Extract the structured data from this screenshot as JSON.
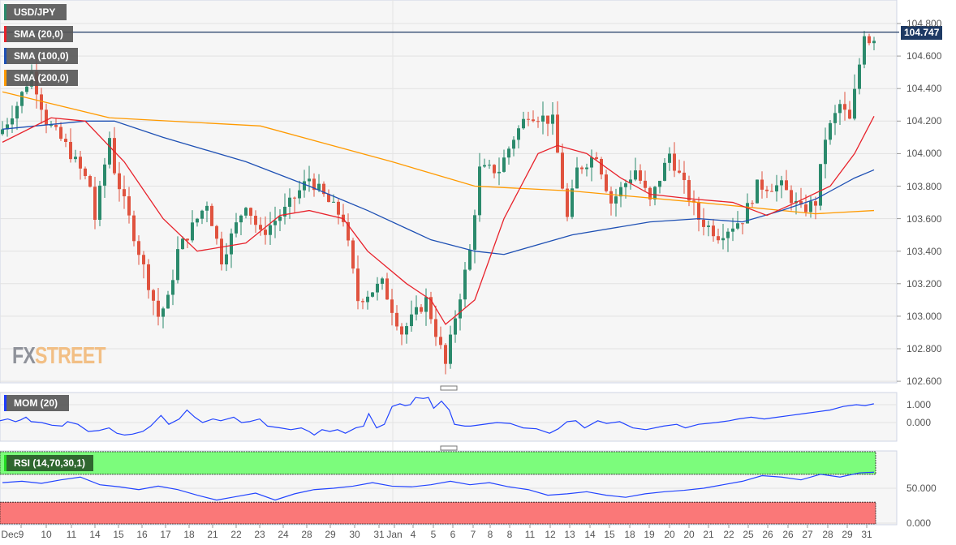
{
  "chart_data": [
    {
      "type": "candlestick",
      "title": "USD/JPY",
      "legend": [
        "USD/JPY",
        "SMA (20,0)",
        "SMA (100,0)",
        "SMA (200,0)"
      ],
      "last_price": "104.747",
      "ylim": [
        102.58,
        104.95
      ],
      "y_ticks": [
        "104.800",
        "104.600",
        "104.400",
        "104.200",
        "104.000",
        "103.800",
        "103.600",
        "103.400",
        "103.200",
        "103.000",
        "102.800",
        "102.600"
      ],
      "close_anchors": [
        [
          0,
          104.15
        ],
        [
          3,
          104.3
        ],
        [
          6,
          104.5
        ],
        [
          9,
          104.2
        ],
        [
          13,
          104.05
        ],
        [
          18,
          103.8
        ],
        [
          19,
          103.6
        ],
        [
          22,
          104.1
        ],
        [
          23,
          103.9
        ],
        [
          27,
          103.5
        ],
        [
          29,
          103.3
        ],
        [
          32,
          103.0
        ],
        [
          34,
          103.1
        ],
        [
          36,
          103.4
        ],
        [
          38,
          103.5
        ],
        [
          42,
          103.7
        ],
        [
          45,
          103.35
        ],
        [
          50,
          103.7
        ],
        [
          53,
          103.5
        ],
        [
          58,
          103.65
        ],
        [
          63,
          103.85
        ],
        [
          67,
          103.7
        ],
        [
          70,
          103.6
        ],
        [
          73,
          103.1
        ],
        [
          78,
          103.2
        ],
        [
          82,
          102.9
        ],
        [
          87,
          103.1
        ],
        [
          91,
          102.7
        ],
        [
          93,
          103.0
        ],
        [
          96,
          103.4
        ],
        [
          98,
          103.9
        ],
        [
          102,
          103.9
        ],
        [
          105,
          104.1
        ],
        [
          108,
          104.25
        ],
        [
          113,
          104.2
        ],
        [
          116,
          103.6
        ],
        [
          118,
          103.9
        ],
        [
          122,
          104.0
        ],
        [
          125,
          103.7
        ],
        [
          130,
          103.9
        ],
        [
          133,
          103.7
        ],
        [
          137,
          104.0
        ],
        [
          140,
          103.8
        ],
        [
          143,
          103.6
        ],
        [
          147,
          103.5
        ],
        [
          152,
          103.6
        ],
        [
          155,
          103.8
        ],
        [
          160,
          103.8
        ],
        [
          164,
          103.65
        ],
        [
          167,
          103.7
        ],
        [
          169,
          104.1
        ],
        [
          172,
          104.3
        ],
        [
          174,
          104.2
        ],
        [
          176,
          104.55
        ],
        [
          177,
          104.75
        ],
        [
          178,
          104.7
        ],
        [
          179,
          104.72
        ]
      ],
      "sma20": [
        [
          0,
          104.07
        ],
        [
          10,
          104.22
        ],
        [
          17,
          104.2
        ],
        [
          25,
          103.95
        ],
        [
          33,
          103.6
        ],
        [
          40,
          103.4
        ],
        [
          50,
          103.45
        ],
        [
          57,
          103.62
        ],
        [
          63,
          103.65
        ],
        [
          70,
          103.6
        ],
        [
          75,
          103.4
        ],
        [
          83,
          103.2
        ],
        [
          88,
          103.1
        ],
        [
          91,
          102.95
        ],
        [
          97,
          103.1
        ],
        [
          103,
          103.6
        ],
        [
          110,
          104.0
        ],
        [
          114,
          104.05
        ],
        [
          120,
          104.0
        ],
        [
          127,
          103.85
        ],
        [
          133,
          103.75
        ],
        [
          142,
          103.72
        ],
        [
          150,
          103.7
        ],
        [
          157,
          103.62
        ],
        [
          163,
          103.7
        ],
        [
          170,
          103.8
        ],
        [
          175,
          104.0
        ],
        [
          179,
          104.23
        ]
      ],
      "sma100": [
        [
          0,
          104.15
        ],
        [
          17,
          104.2
        ],
        [
          23,
          104.2
        ],
        [
          33,
          104.1
        ],
        [
          50,
          103.95
        ],
        [
          63,
          103.8
        ],
        [
          75,
          103.65
        ],
        [
          88,
          103.47
        ],
        [
          97,
          103.4
        ],
        [
          103,
          103.38
        ],
        [
          117,
          103.5
        ],
        [
          133,
          103.58
        ],
        [
          143,
          103.6
        ],
        [
          152,
          103.58
        ],
        [
          160,
          103.65
        ],
        [
          167,
          103.72
        ],
        [
          175,
          103.85
        ],
        [
          179,
          103.9
        ]
      ],
      "sma200": [
        [
          0,
          104.38
        ],
        [
          22,
          104.22
        ],
        [
          53,
          104.17
        ],
        [
          80,
          103.95
        ],
        [
          97,
          103.8
        ],
        [
          117,
          103.77
        ],
        [
          143,
          103.7
        ],
        [
          167,
          103.63
        ],
        [
          179,
          103.65
        ]
      ],
      "colors": {
        "up": "#2b8a6c",
        "down": "#e0533f",
        "sma20": "#e8222b",
        "sma100": "#1e50b4",
        "sma200": "#ff9a00",
        "price_line": "#1e3a64"
      }
    },
    {
      "type": "line",
      "title": "MOM (20)",
      "y_ticks": [
        "1.000",
        "0.000"
      ],
      "ylim": [
        -0.9,
        1.45
      ],
      "points": [
        [
          0,
          0.1
        ],
        [
          3,
          0.2
        ],
        [
          6,
          0.05
        ],
        [
          8,
          0.15
        ],
        [
          10,
          0.3
        ],
        [
          12,
          0.05
        ],
        [
          16,
          0.0
        ],
        [
          20,
          -0.15
        ],
        [
          24,
          -0.2
        ],
        [
          26,
          0.05
        ],
        [
          30,
          -0.1
        ],
        [
          34,
          -0.5
        ],
        [
          38,
          -0.45
        ],
        [
          42,
          -0.3
        ],
        [
          45,
          -0.6
        ],
        [
          48,
          -0.7
        ],
        [
          51,
          -0.65
        ],
        [
          55,
          -0.5
        ],
        [
          58,
          -0.2
        ],
        [
          62,
          0.4
        ],
        [
          65,
          -0.1
        ],
        [
          69,
          0.2
        ],
        [
          72,
          0.7
        ],
        [
          75,
          0.3
        ],
        [
          78,
          0.0
        ],
        [
          82,
          0.2
        ],
        [
          85,
          0.1
        ],
        [
          90,
          0.3
        ],
        [
          93,
          0.0
        ],
        [
          96,
          0.05
        ],
        [
          100,
          0.2
        ],
        [
          103,
          -0.2
        ],
        [
          108,
          -0.3
        ],
        [
          112,
          -0.4
        ],
        [
          116,
          -0.3
        ],
        [
          119,
          -0.5
        ],
        [
          121,
          -0.7
        ],
        [
          124,
          -0.4
        ],
        [
          127,
          -0.5
        ],
        [
          130,
          -0.4
        ],
        [
          133,
          -0.6
        ],
        [
          137,
          -0.3
        ],
        [
          140,
          -0.2
        ],
        [
          142,
          0.5
        ],
        [
          145,
          -0.3
        ],
        [
          148,
          -0.1
        ],
        [
          151,
          0.9
        ],
        [
          154,
          1.05
        ],
        [
          156,
          0.95
        ],
        [
          158,
          1.0
        ],
        [
          160,
          1.4
        ],
        [
          163,
          1.35
        ],
        [
          165,
          1.4
        ],
        [
          167,
          0.8
        ],
        [
          170,
          1.2
        ],
        [
          173,
          0.7
        ],
        [
          175,
          -0.1
        ],
        [
          179,
          -0.2
        ]
      ],
      "points_right": [
        [
          0,
          -0.2
        ],
        [
          6,
          0.0
        ],
        [
          9,
          -0.05
        ],
        [
          12,
          -0.3
        ],
        [
          15,
          -0.35
        ],
        [
          18,
          -0.6
        ],
        [
          20,
          -0.35
        ],
        [
          22,
          0.05
        ],
        [
          24,
          0.1
        ],
        [
          26,
          -0.3
        ],
        [
          29,
          0.1
        ],
        [
          31,
          -0.05
        ],
        [
          34,
          0.05
        ],
        [
          37,
          -0.3
        ],
        [
          40,
          -0.4
        ],
        [
          44,
          -0.2
        ],
        [
          47,
          -0.1
        ],
        [
          49,
          -0.3
        ],
        [
          52,
          -0.1
        ],
        [
          56,
          0.0
        ],
        [
          59,
          0.1
        ],
        [
          61,
          0.2
        ],
        [
          64,
          0.3
        ],
        [
          67,
          0.2
        ],
        [
          70,
          0.3
        ],
        [
          73,
          0.4
        ],
        [
          76,
          0.5
        ],
        [
          79,
          0.6
        ],
        [
          82,
          0.7
        ],
        [
          85,
          0.9
        ],
        [
          88,
          1.0
        ],
        [
          90,
          0.95
        ],
        [
          92,
          1.05
        ]
      ]
    },
    {
      "type": "line",
      "title": "RSI (14,70,30,1)",
      "y_ticks": [
        "50.000",
        "0.000"
      ],
      "ylim": [
        0,
        100
      ],
      "overbought": 70,
      "oversold": 30,
      "points": [
        [
          0,
          58
        ],
        [
          4,
          60
        ],
        [
          8,
          57
        ],
        [
          12,
          62
        ],
        [
          16,
          66
        ],
        [
          20,
          55
        ],
        [
          24,
          52
        ],
        [
          28,
          48
        ],
        [
          32,
          53
        ],
        [
          36,
          48
        ],
        [
          40,
          40
        ],
        [
          44,
          33
        ],
        [
          48,
          38
        ],
        [
          52,
          43
        ],
        [
          56,
          33
        ],
        [
          60,
          42
        ],
        [
          64,
          48
        ],
        [
          68,
          50
        ],
        [
          72,
          53
        ],
        [
          76,
          58
        ],
        [
          80,
          53
        ],
        [
          84,
          52
        ],
        [
          88,
          55
        ],
        [
          92,
          60
        ],
        [
          96,
          55
        ],
        [
          100,
          58
        ],
        [
          104,
          52
        ],
        [
          108,
          48
        ],
        [
          112,
          40
        ],
        [
          116,
          42
        ],
        [
          120,
          45
        ],
        [
          124,
          40
        ],
        [
          128,
          37
        ],
        [
          132,
          42
        ],
        [
          136,
          45
        ],
        [
          140,
          47
        ],
        [
          144,
          50
        ],
        [
          148,
          55
        ],
        [
          152,
          60
        ],
        [
          156,
          68
        ],
        [
          160,
          66
        ],
        [
          164,
          62
        ],
        [
          168,
          70
        ],
        [
          172,
          66
        ],
        [
          176,
          72
        ],
        [
          179,
          73
        ]
      ]
    },
    {
      "x_ticks": [
        "Dec",
        "9",
        "10",
        "11",
        "14",
        "15",
        "16",
        "17",
        "18",
        "21",
        "22",
        "23",
        "24",
        "28",
        "29",
        "30",
        "31",
        "Jan",
        "4",
        "5",
        "6",
        "7",
        "8",
        "8",
        "11",
        "12",
        "13",
        "14",
        "15",
        "18",
        "19",
        "20",
        "20",
        "21",
        "22",
        "25",
        "26",
        "26",
        "27",
        "28",
        "29",
        "31"
      ]
    }
  ],
  "watermark": {
    "fx": "FX",
    "street": "STREET"
  }
}
